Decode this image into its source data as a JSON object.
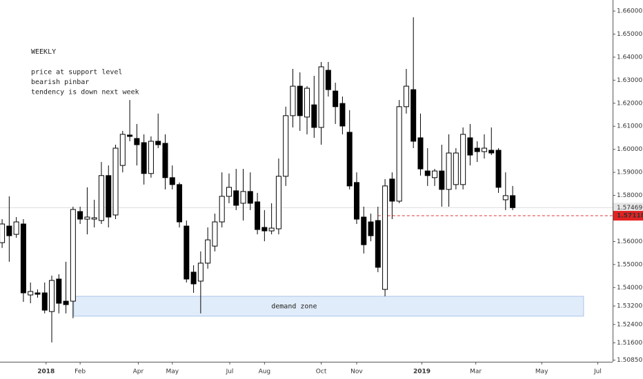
{
  "chart_data": {
    "type": "candlestick",
    "annotations": [
      "WEEKLY",
      "price at support level",
      "bearish pinbar",
      "tendency is down next week"
    ],
    "open": [
      1.5595,
      1.5667,
      1.5631,
      1.5676,
      1.5368,
      1.5377,
      1.5377,
      1.5296,
      1.5437,
      1.5341,
      1.5341,
      1.573,
      1.5697,
      1.5697,
      1.5691,
      1.5886,
      1.5715,
      1.593,
      1.6062,
      1.6047,
      1.6029,
      1.5895,
      1.6035,
      1.6026,
      1.5877,
      1.5847,
      1.5667,
      1.5467,
      1.5428,
      1.5506,
      1.558,
      1.5685,
      1.5796,
      1.582,
      1.5766,
      1.5817,
      1.5772,
      1.5661,
      1.5646,
      1.5655,
      1.5883,
      1.6146,
      1.6274,
      1.614,
      1.6193,
      1.6095,
      1.6343,
      1.6253,
      1.6199,
      1.6074,
      1.5856,
      1.5706,
      1.5685,
      1.5691,
      1.5392,
      1.5871,
      1.5775,
      1.6185,
      1.6259,
      1.605,
      1.5906,
      1.5877,
      1.5906,
      1.5826,
      1.5847,
      1.5847,
      1.605,
      1.6005,
      1.599,
      1.5996,
      1.5996,
      1.5781,
      1.5799
    ],
    "high": [
      1.5697,
      1.5796,
      1.5706,
      1.5697,
      1.5422,
      1.5392,
      1.5422,
      1.5452,
      1.5458,
      1.5512,
      1.5751,
      1.5751,
      1.5835,
      1.5781,
      1.5945,
      1.593,
      1.602,
      1.608,
      1.6214,
      1.611,
      1.6065,
      1.6056,
      1.6155,
      1.6065,
      1.593,
      1.5856,
      1.5691,
      1.5497,
      1.5557,
      1.5661,
      1.5721,
      1.59,
      1.5895,
      1.5915,
      1.5915,
      1.59,
      1.5811,
      1.5736,
      1.5766,
      1.596,
      1.6185,
      1.6349,
      1.6334,
      1.6274,
      1.6319,
      1.6379,
      1.6379,
      1.6289,
      1.6229,
      1.617,
      1.59,
      1.5751,
      1.5721,
      1.5751,
      1.5871,
      1.59,
      1.6214,
      1.6349,
      1.6573,
      1.6155,
      1.6005,
      1.5915,
      1.602,
      1.6065,
      1.6005,
      1.6095,
      1.611,
      1.6035,
      1.6065,
      1.6095,
      1.6005,
      1.59,
      1.5841
    ],
    "low": [
      1.5572,
      1.5512,
      1.5616,
      1.5338,
      1.5332,
      1.5356,
      1.5288,
      1.5162,
      1.5288,
      1.5288,
      1.5267,
      1.5676,
      1.5631,
      1.5661,
      1.5676,
      1.5661,
      1.5697,
      1.59,
      1.6035,
      1.593,
      1.5847,
      1.5877,
      1.6005,
      1.5826,
      1.5826,
      1.5661,
      1.5422,
      1.5377,
      1.5288,
      1.5482,
      1.5557,
      1.5661,
      1.5766,
      1.5736,
      1.5691,
      1.5736,
      1.5631,
      1.5601,
      1.5631,
      1.5631,
      1.5841,
      1.6095,
      1.608,
      1.6065,
      1.605,
      1.602,
      1.6229,
      1.611,
      1.6065,
      1.5826,
      1.5676,
      1.5548,
      1.5601,
      1.5467,
      1.5362,
      1.5697,
      1.5766,
      1.6155,
      1.6005,
      1.5886,
      1.5841,
      1.5841,
      1.5751,
      1.5751,
      1.5826,
      1.5826,
      1.593,
      1.5945,
      1.596,
      1.5975,
      1.5811,
      1.5736,
      1.5736
    ],
    "close": [
      1.5676,
      1.5625,
      1.5685,
      1.5377,
      1.5383,
      1.5371,
      1.5302,
      1.5431,
      1.5332,
      1.5326,
      1.5739,
      1.5697,
      1.5706,
      1.5703,
      1.5886,
      1.5706,
      1.6005,
      1.6065,
      1.6056,
      1.602,
      1.5895,
      1.6035,
      1.602,
      1.5877,
      1.5847,
      1.5685,
      1.5437,
      1.5416,
      1.5506,
      1.5607,
      1.5685,
      1.5796,
      1.5835,
      1.5757,
      1.5817,
      1.5766,
      1.5652,
      1.5646,
      1.5658,
      1.5883,
      1.6146,
      1.6274,
      1.6146,
      1.6265,
      1.6095,
      1.6358,
      1.6259,
      1.6185,
      1.6101,
      1.5841,
      1.5697,
      1.5586,
      1.5625,
      1.5488,
      1.5841,
      1.5775,
      1.6185,
      1.6274,
      1.6035,
      1.5915,
      1.5886,
      1.5906,
      1.5826,
      1.5984,
      1.5984,
      1.6065,
      1.5975,
      1.599,
      1.6005,
      1.5984,
      1.5835,
      1.5799,
      1.5747
    ],
    "xlim": [
      -0.3,
      86.1
    ],
    "ylim": [
      1.5078,
      1.6648
    ],
    "xticks": [
      {
        "value": 6.2,
        "label": "2018"
      },
      {
        "value": 11.0,
        "label": "Feb"
      },
      {
        "value": 19.2,
        "label": "Apr"
      },
      {
        "value": 24.0,
        "label": "May"
      },
      {
        "value": 32.1,
        "label": "Jul"
      },
      {
        "value": 37.0,
        "label": "Aug"
      },
      {
        "value": 45.0,
        "label": "Oct"
      },
      {
        "value": 50.0,
        "label": "Nov"
      },
      {
        "value": 59.2,
        "label": "2019"
      },
      {
        "value": 66.8,
        "label": "Mar"
      },
      {
        "value": 76.1,
        "label": "May"
      },
      {
        "value": 84.0,
        "label": "Jul"
      }
    ],
    "yticks": [
      {
        "value": 1.66,
        "label": "1.66000"
      },
      {
        "value": 1.65,
        "label": "1.65000"
      },
      {
        "value": 1.64,
        "label": "1.64000"
      },
      {
        "value": 1.63,
        "label": "1.63000"
      },
      {
        "value": 1.62,
        "label": "1.62000"
      },
      {
        "value": 1.61,
        "label": "1.61000"
      },
      {
        "value": 1.6,
        "label": "1.60000"
      },
      {
        "value": 1.59,
        "label": "1.59000"
      },
      {
        "value": 1.58,
        "label": "1.58000"
      },
      {
        "value": 1.56,
        "label": "1.56000"
      },
      {
        "value": 1.55,
        "label": "1.55000"
      },
      {
        "value": 1.54,
        "label": "1.54000"
      },
      {
        "value": 1.532,
        "label": "1.53200"
      },
      {
        "value": 1.524,
        "label": "1.52400"
      },
      {
        "value": 1.516,
        "label": "1.51600"
      },
      {
        "value": 1.5085,
        "label": "1.50850"
      }
    ],
    "last_price": {
      "value": 1.57469,
      "label": "1.57469"
    },
    "alert_line": {
      "value": 1.57118,
      "label": "1.57118",
      "x_start": 53.0
    },
    "zone": {
      "label": "demand zone",
      "xlim": [
        10.1,
        82.0
      ],
      "ylim": [
        1.5276,
        1.5362
      ]
    }
  }
}
